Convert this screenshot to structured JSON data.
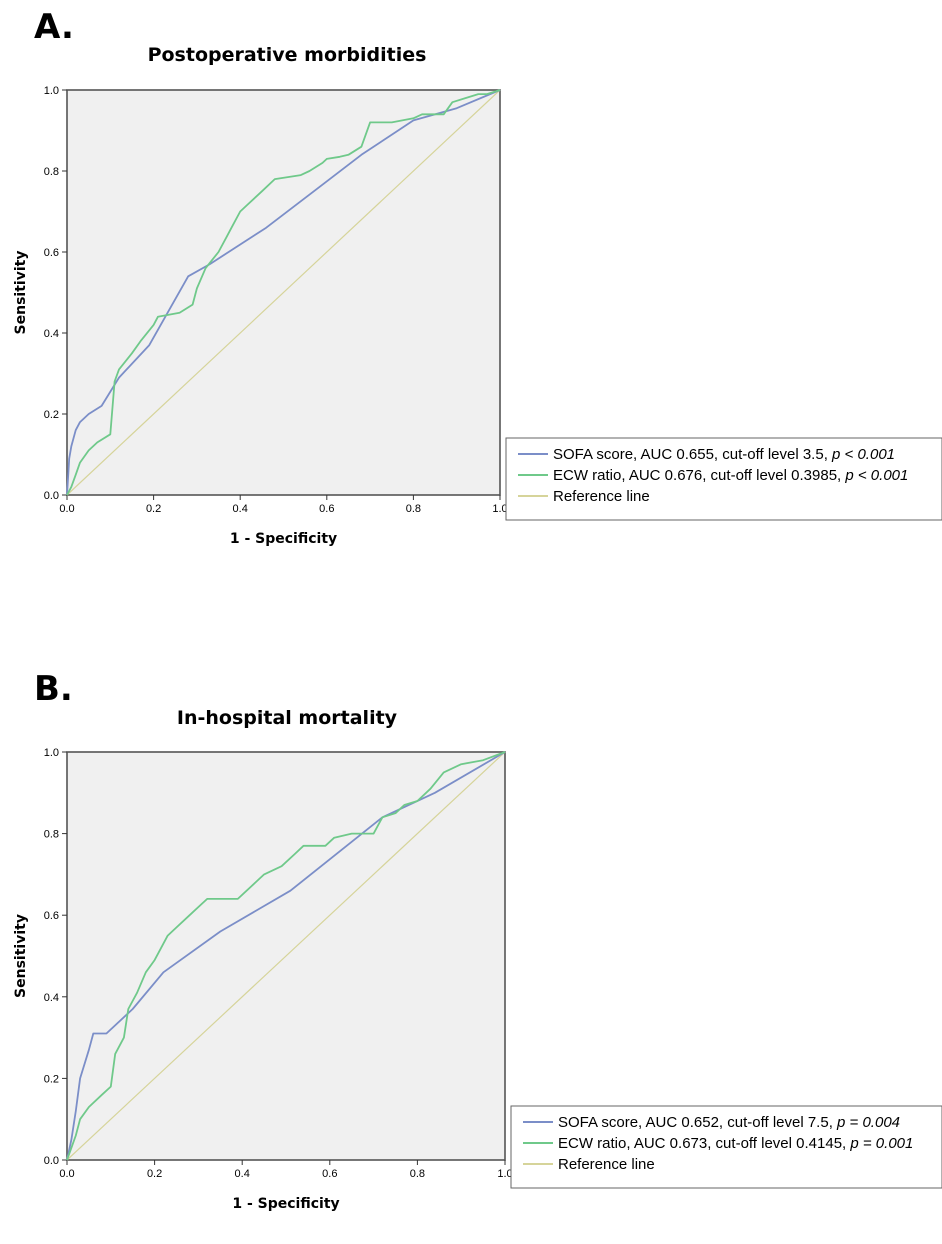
{
  "chart_data": [
    {
      "panel": "A.",
      "type": "line",
      "title": "Postoperative morbidities",
      "xlabel": "1 - Specificity",
      "ylabel": "Sensitivity",
      "xlim": [
        0,
        1
      ],
      "ylim": [
        0,
        1
      ],
      "xticks": [
        "0.0",
        "0.2",
        "0.4",
        "0.6",
        "0.8",
        "1.0"
      ],
      "yticks": [
        "0.0",
        "0.2",
        "0.4",
        "0.6",
        "0.8",
        "1.0"
      ],
      "grid": false,
      "legend_position": "right",
      "series": [
        {
          "name": "SOFA score, AUC 0.655, cut-off level 3.5, ",
          "p_label": "p < 0.001",
          "color": "#7b8ec8",
          "x": [
            0,
            0.005,
            0.01,
            0.02,
            0.03,
            0.05,
            0.08,
            0.12,
            0.19,
            0.28,
            0.33,
            0.46,
            0.57,
            0.68,
            0.8,
            0.9,
            1.0
          ],
          "y": [
            0,
            0.09,
            0.12,
            0.16,
            0.18,
            0.2,
            0.22,
            0.29,
            0.37,
            0.54,
            0.57,
            0.66,
            0.75,
            0.84,
            0.925,
            0.955,
            1.0
          ]
        },
        {
          "name": "ECW ratio, AUC 0.676, cut-off level 0.3985, ",
          "p_label": "p < 0.001",
          "color": "#6fc98a",
          "x": [
            0,
            0.01,
            0.02,
            0.03,
            0.05,
            0.07,
            0.1,
            0.11,
            0.12,
            0.15,
            0.17,
            0.2,
            0.21,
            0.26,
            0.29,
            0.3,
            0.32,
            0.35,
            0.37,
            0.38,
            0.4,
            0.42,
            0.45,
            0.48,
            0.51,
            0.54,
            0.56,
            0.59,
            0.6,
            0.63,
            0.65,
            0.68,
            0.7,
            0.75,
            0.8,
            0.82,
            0.87,
            0.89,
            0.92,
            0.95,
            0.97,
            1.0
          ],
          "y": [
            0,
            0.02,
            0.05,
            0.08,
            0.11,
            0.13,
            0.15,
            0.28,
            0.31,
            0.35,
            0.38,
            0.42,
            0.44,
            0.45,
            0.47,
            0.51,
            0.56,
            0.6,
            0.64,
            0.66,
            0.7,
            0.72,
            0.75,
            0.78,
            0.785,
            0.79,
            0.8,
            0.82,
            0.83,
            0.835,
            0.84,
            0.86,
            0.92,
            0.92,
            0.93,
            0.94,
            0.94,
            0.97,
            0.98,
            0.99,
            0.99,
            1.0
          ]
        },
        {
          "name": "Reference line",
          "color": "#d6d49a",
          "x": [
            0,
            1
          ],
          "y": [
            0,
            1
          ]
        }
      ]
    },
    {
      "panel": "B.",
      "type": "line",
      "title": "In-hospital mortality",
      "xlabel": "1 - Specificity",
      "ylabel": "Sensitivity",
      "xlim": [
        0,
        1
      ],
      "ylim": [
        0,
        1
      ],
      "xticks": [
        "0.0",
        "0.2",
        "0.4",
        "0.6",
        "0.8",
        "1.0"
      ],
      "yticks": [
        "0.0",
        "0.2",
        "0.4",
        "0.6",
        "0.8",
        "1.0"
      ],
      "grid": false,
      "legend_position": "right",
      "series": [
        {
          "name": "SOFA score, AUC 0.652, cut-off level 7.5, ",
          "p_label": "p = 0.004",
          "color": "#7b8ec8",
          "x": [
            0,
            0.01,
            0.02,
            0.03,
            0.05,
            0.06,
            0.09,
            0.15,
            0.22,
            0.35,
            0.51,
            0.72,
            0.84,
            1.0
          ],
          "y": [
            0,
            0.05,
            0.12,
            0.2,
            0.27,
            0.31,
            0.31,
            0.37,
            0.46,
            0.56,
            0.66,
            0.84,
            0.9,
            1.0
          ]
        },
        {
          "name": "ECW ratio, AUC 0.673, cut-off level 0.4145, ",
          "p_label": "p = 0.001",
          "color": "#6fc98a",
          "x": [
            0,
            0.01,
            0.02,
            0.03,
            0.05,
            0.08,
            0.1,
            0.11,
            0.13,
            0.14,
            0.16,
            0.18,
            0.2,
            0.23,
            0.25,
            0.28,
            0.3,
            0.32,
            0.39,
            0.42,
            0.45,
            0.49,
            0.52,
            0.54,
            0.59,
            0.61,
            0.65,
            0.67,
            0.7,
            0.72,
            0.75,
            0.77,
            0.8,
            0.83,
            0.86,
            0.9,
            0.95,
            1.0
          ],
          "y": [
            0,
            0.03,
            0.06,
            0.1,
            0.13,
            0.16,
            0.18,
            0.26,
            0.3,
            0.37,
            0.41,
            0.46,
            0.49,
            0.55,
            0.57,
            0.6,
            0.62,
            0.64,
            0.64,
            0.67,
            0.7,
            0.72,
            0.75,
            0.77,
            0.77,
            0.79,
            0.8,
            0.8,
            0.8,
            0.84,
            0.85,
            0.87,
            0.88,
            0.91,
            0.95,
            0.97,
            0.98,
            1.0
          ]
        },
        {
          "name": "Reference line",
          "color": "#d6d49a",
          "x": [
            0,
            1
          ],
          "y": [
            0,
            1
          ]
        }
      ]
    }
  ]
}
